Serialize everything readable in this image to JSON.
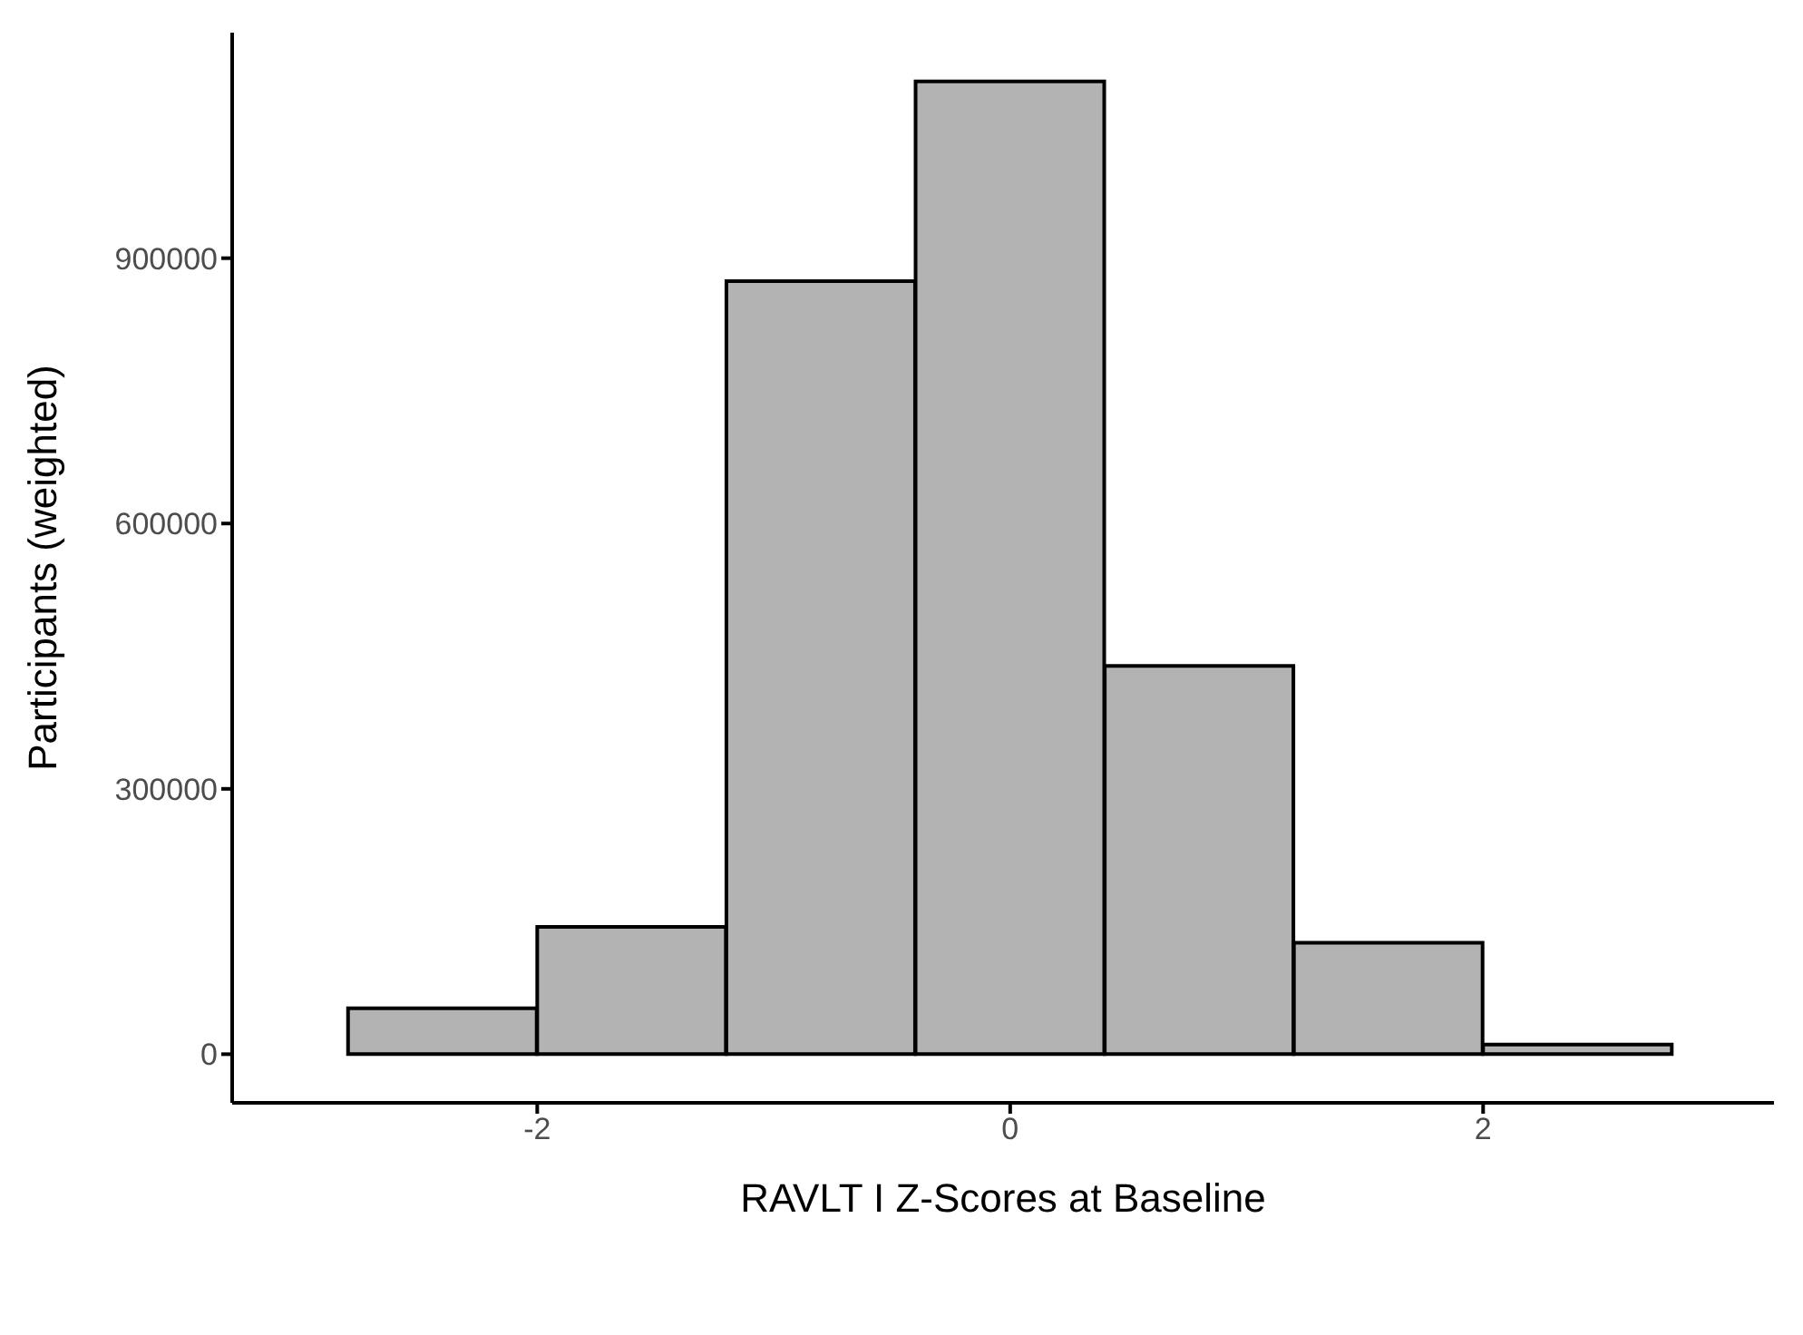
{
  "chart_data": {
    "type": "histogram",
    "xlabel": "RAVLT I Z-Scores at Baseline",
    "ylabel": "Participants (weighted)",
    "bins": [
      -2.8,
      -2.0,
      -1.2,
      -0.4,
      0.4,
      1.2,
      2.0,
      2.8
    ],
    "values": [
      52000,
      144000,
      874000,
      1100000,
      439000,
      126000,
      11000
    ],
    "color": "#b3b3b3",
    "xlim": [
      -3.29,
      3.23
    ],
    "xticks": [
      -2,
      0,
      2
    ],
    "ylim": [
      -55000,
      1155000
    ],
    "yticks": [
      0,
      300000,
      600000,
      900000
    ],
    "grid": false,
    "legend": false
  }
}
